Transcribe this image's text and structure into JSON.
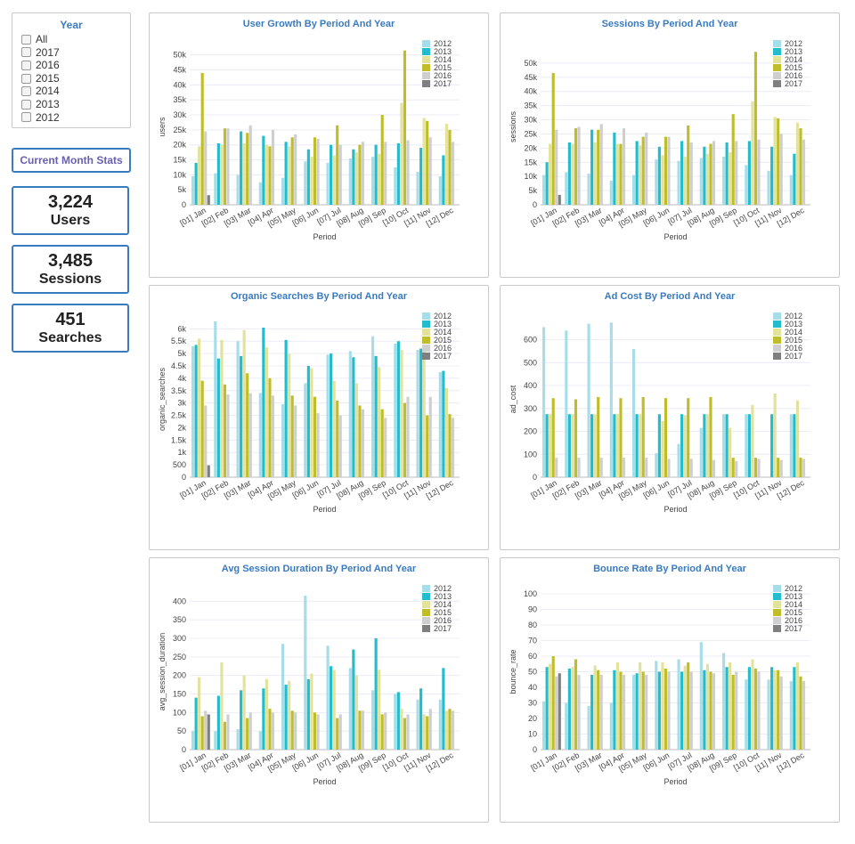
{
  "year_filter": {
    "title": "Year",
    "options": [
      "All",
      "2017",
      "2016",
      "2015",
      "2014",
      "2013",
      "2012"
    ]
  },
  "current_month_button": "Current Month Stats",
  "stats": [
    {
      "value": "3,224",
      "label": "Users"
    },
    {
      "value": "3,485",
      "label": "Sessions"
    },
    {
      "value": "451",
      "label": "Searches"
    }
  ],
  "colors": {
    "2012": "#a6dde8",
    "2013": "#22bccd",
    "2014": "#e3e29a",
    "2015": "#bfbd2a",
    "2016": "#cfcfcf",
    "2017": "#7f7f7f",
    "accent": "#3a7bbf"
  },
  "chart_data": [
    {
      "type": "bar",
      "title": "User Growth By Period And Year",
      "xlabel": "Period",
      "ylabel": "users",
      "categories": [
        "[01] Jan",
        "[02] Feb",
        "[03] Mar",
        "[04] Apr",
        "[05] May",
        "[06] Jun",
        "[07] Jul",
        "[08] Aug",
        "[09] Sep",
        "[10] Oct",
        "[11] Nov",
        "[12] Dec"
      ],
      "ylim": [
        0,
        52000
      ],
      "yticks": [
        0,
        5000,
        10000,
        15000,
        20000,
        25000,
        30000,
        35000,
        40000,
        45000,
        50000
      ],
      "ytick_labels": [
        "0",
        "5k",
        "10k",
        "15k",
        "20k",
        "25k",
        "30k",
        "35k",
        "40k",
        "45k",
        "50k"
      ],
      "legend_position": "top-right",
      "series": [
        {
          "name": "2012",
          "values": [
            9500,
            10500,
            10000,
            7500,
            9000,
            14500,
            14000,
            15500,
            16000,
            12500,
            11000,
            9500
          ]
        },
        {
          "name": "2013",
          "values": [
            14000,
            20500,
            24500,
            23000,
            21000,
            18500,
            20000,
            18500,
            20000,
            20500,
            19000,
            16500
          ]
        },
        {
          "name": "2014",
          "values": [
            19500,
            20000,
            20500,
            20000,
            19500,
            16000,
            16500,
            17500,
            17000,
            34000,
            29000,
            27000
          ]
        },
        {
          "name": "2015",
          "values": [
            44000,
            25500,
            24000,
            19500,
            22500,
            22500,
            26500,
            20000,
            30000,
            51500,
            28000,
            25000
          ]
        },
        {
          "name": "2016",
          "values": [
            24500,
            25500,
            26500,
            25000,
            23500,
            22000,
            20000,
            21000,
            21000,
            21500,
            22500,
            21000
          ]
        },
        {
          "name": "2017",
          "values": [
            3200,
            null,
            null,
            null,
            null,
            null,
            null,
            null,
            null,
            null,
            null,
            null
          ]
        }
      ]
    },
    {
      "type": "bar",
      "title": "Sessions By Period And Year",
      "xlabel": "Period",
      "ylabel": "sessions",
      "categories": [
        "[01] Jan",
        "[02] Feb",
        "[03] Mar",
        "[04] Apr",
        "[05] May",
        "[06] Jun",
        "[07] Jul",
        "[08] Aug",
        "[09] Sep",
        "[10] Oct",
        "[11] Nov",
        "[12] Dec"
      ],
      "ylim": [
        0,
        55000
      ],
      "yticks": [
        0,
        5000,
        10000,
        15000,
        20000,
        25000,
        30000,
        35000,
        40000,
        45000,
        50000
      ],
      "ytick_labels": [
        "0",
        "5k",
        "10k",
        "15k",
        "20k",
        "25k",
        "30k",
        "35k",
        "40k",
        "45k",
        "50k"
      ],
      "legend_position": "top-right",
      "series": [
        {
          "name": "2012",
          "values": [
            10500,
            11500,
            11000,
            8500,
            10500,
            16000,
            15500,
            16500,
            17000,
            14000,
            12000,
            10500
          ]
        },
        {
          "name": "2013",
          "values": [
            15000,
            22000,
            26500,
            25500,
            22500,
            20500,
            22500,
            20500,
            22000,
            22500,
            20500,
            18000
          ]
        },
        {
          "name": "2014",
          "values": [
            21500,
            21500,
            22000,
            21500,
            21000,
            17500,
            17000,
            18000,
            18500,
            36500,
            31000,
            29000
          ]
        },
        {
          "name": "2015",
          "values": [
            46500,
            27000,
            26500,
            21500,
            24000,
            24000,
            28000,
            21500,
            32000,
            54000,
            30500,
            27000
          ]
        },
        {
          "name": "2016",
          "values": [
            26500,
            27500,
            28500,
            27000,
            25500,
            24000,
            22000,
            22500,
            22500,
            23000,
            25000,
            23000
          ]
        },
        {
          "name": "2017",
          "values": [
            3500,
            null,
            null,
            null,
            null,
            null,
            null,
            null,
            null,
            null,
            null,
            null
          ]
        }
      ]
    },
    {
      "type": "bar",
      "title": "Organic Searches By Period And Year",
      "xlabel": "Period",
      "ylabel": "organic_searches",
      "categories": [
        "[01] Jan",
        "[02] Feb",
        "[03] Mar",
        "[04] Apr",
        "[05] May",
        "[06] Jun",
        "[07] Jul",
        "[08] Aug",
        "[09] Sep",
        "[10] Oct",
        "[11] Nov",
        "[12] Dec"
      ],
      "ylim": [
        0,
        6300
      ],
      "yticks": [
        0,
        500,
        1000,
        1500,
        2000,
        2500,
        3000,
        3500,
        4000,
        4500,
        5000,
        5500,
        6000
      ],
      "ytick_labels": [
        "0",
        "500",
        "1k",
        "1.5k",
        "2k",
        "2.5k",
        "3k",
        "3.5k",
        "4k",
        "4.5k",
        "5k",
        "5.5k",
        "6k"
      ],
      "legend_position": "top-right",
      "series": [
        {
          "name": "2012",
          "values": [
            5300,
            6300,
            5500,
            3400,
            2950,
            3800,
            4950,
            5100,
            5700,
            5400,
            5150,
            4250
          ]
        },
        {
          "name": "2013",
          "values": [
            5350,
            4800,
            4900,
            6050,
            5550,
            4500,
            5000,
            4850,
            4900,
            5500,
            5200,
            4300
          ]
        },
        {
          "name": "2014",
          "values": [
            5600,
            5550,
            5950,
            5250,
            5000,
            4400,
            3900,
            3800,
            4450,
            5150,
            5250,
            3600
          ]
        },
        {
          "name": "2015",
          "values": [
            3900,
            3750,
            4200,
            4000,
            3300,
            3250,
            3100,
            2900,
            2750,
            3000,
            2500,
            2550
          ]
        },
        {
          "name": "2016",
          "values": [
            2900,
            3350,
            3400,
            3300,
            2900,
            2600,
            2500,
            2750,
            2400,
            3250,
            3250,
            2400
          ]
        },
        {
          "name": "2017",
          "values": [
            480,
            null,
            null,
            null,
            null,
            null,
            null,
            null,
            null,
            null,
            null,
            null
          ]
        }
      ]
    },
    {
      "type": "bar",
      "title": "Ad Cost By Period And Year",
      "xlabel": "Period",
      "ylabel": "ad_cost",
      "categories": [
        "[01] Jan",
        "[02] Feb",
        "[03] Mar",
        "[04] Apr",
        "[05] May",
        "[06] Jun",
        "[07] Jul",
        "[08] Aug",
        "[09] Sep",
        "[10] Oct",
        "[11] Nov",
        "[12] Dec"
      ],
      "ylim": [
        0,
        680
      ],
      "yticks": [
        0,
        100,
        200,
        300,
        400,
        500,
        600
      ],
      "ytick_labels": [
        "0",
        "100",
        "200",
        "300",
        "400",
        "500",
        "600"
      ],
      "legend_position": "top-right",
      "series": [
        {
          "name": "2012",
          "values": [
            655,
            640,
            670,
            675,
            560,
            105,
            145,
            215,
            275,
            275,
            0,
            275
          ]
        },
        {
          "name": "2013",
          "values": [
            275,
            275,
            275,
            275,
            275,
            275,
            275,
            275,
            275,
            275,
            275,
            275
          ]
        },
        {
          "name": "2014",
          "values": [
            275,
            275,
            275,
            275,
            275,
            245,
            270,
            275,
            215,
            315,
            365,
            335
          ]
        },
        {
          "name": "2015",
          "values": [
            345,
            340,
            350,
            345,
            350,
            345,
            345,
            350,
            85,
            85,
            85,
            85
          ]
        },
        {
          "name": "2016",
          "values": [
            85,
            85,
            85,
            85,
            85,
            80,
            80,
            75,
            70,
            80,
            75,
            80
          ]
        },
        {
          "name": "2017",
          "values": [
            null,
            null,
            null,
            null,
            null,
            null,
            null,
            null,
            null,
            null,
            null,
            null
          ]
        }
      ]
    },
    {
      "type": "bar",
      "title": "Avg Session Duration By Period And Year",
      "xlabel": "Period",
      "ylabel": "avg_session_duration",
      "categories": [
        "[01] Jan",
        "[02] Feb",
        "[03] Mar",
        "[04] Apr",
        "[05] May",
        "[06] Jun",
        "[07] Jul",
        "[08] Aug",
        "[09] Sep",
        "[10] Oct",
        "[11] Nov",
        "[12] Dec"
      ],
      "ylim": [
        0,
        420
      ],
      "yticks": [
        0,
        50,
        100,
        150,
        200,
        250,
        300,
        350,
        400
      ],
      "ytick_labels": [
        "0",
        "50",
        "100",
        "150",
        "200",
        "250",
        "300",
        "350",
        "400"
      ],
      "legend_position": "top-right",
      "series": [
        {
          "name": "2012",
          "values": [
            50,
            50,
            55,
            50,
            285,
            415,
            280,
            220,
            160,
            150,
            135,
            135
          ]
        },
        {
          "name": "2013",
          "values": [
            140,
            145,
            160,
            165,
            175,
            190,
            225,
            270,
            300,
            155,
            165,
            220
          ]
        },
        {
          "name": "2014",
          "values": [
            195,
            235,
            200,
            190,
            185,
            205,
            215,
            200,
            215,
            110,
            95,
            105
          ]
        },
        {
          "name": "2015",
          "values": [
            90,
            75,
            85,
            110,
            105,
            100,
            85,
            105,
            95,
            85,
            90,
            110
          ]
        },
        {
          "name": "2016",
          "values": [
            105,
            95,
            100,
            100,
            100,
            95,
            95,
            105,
            100,
            95,
            110,
            105
          ]
        },
        {
          "name": "2017",
          "values": [
            95,
            null,
            null,
            null,
            null,
            null,
            null,
            null,
            null,
            null,
            null,
            null
          ]
        }
      ]
    },
    {
      "type": "bar",
      "title": "Bounce Rate By Period And Year",
      "xlabel": "Period",
      "ylabel": "bounce_rate",
      "categories": [
        "[01] Jan",
        "[02] Feb",
        "[03] Mar",
        "[04] Apr",
        "[05] May",
        "[06] Jun",
        "[07] Jul",
        "[08] Aug",
        "[09] Sep",
        "[10] Oct",
        "[11] Nov",
        "[12] Dec"
      ],
      "ylim": [
        0,
        100
      ],
      "yticks": [
        0,
        10,
        20,
        30,
        40,
        50,
        60,
        70,
        80,
        90,
        100
      ],
      "ytick_labels": [
        "0",
        "10",
        "20",
        "30",
        "40",
        "50",
        "60",
        "70",
        "80",
        "90",
        "100"
      ],
      "legend_position": "top-right",
      "series": [
        {
          "name": "2012",
          "values": [
            31,
            30,
            28,
            30,
            48,
            57,
            58,
            69,
            62,
            45,
            45,
            44
          ]
        },
        {
          "name": "2013",
          "values": [
            53,
            52,
            48,
            51,
            49,
            50,
            50,
            51,
            53,
            53,
            53,
            53
          ]
        },
        {
          "name": "2014",
          "values": [
            55,
            53,
            54,
            56,
            56,
            56,
            54,
            55,
            56,
            58,
            51,
            56
          ]
        },
        {
          "name": "2015",
          "values": [
            60,
            58,
            51,
            50,
            50,
            52,
            56,
            50,
            48,
            52,
            51,
            47
          ]
        },
        {
          "name": "2016",
          "values": [
            47,
            48,
            48,
            48,
            48,
            50,
            50,
            49,
            50,
            50,
            47,
            44
          ]
        },
        {
          "name": "2017",
          "values": [
            49,
            null,
            null,
            null,
            null,
            null,
            null,
            null,
            null,
            null,
            null,
            null
          ]
        }
      ]
    }
  ]
}
